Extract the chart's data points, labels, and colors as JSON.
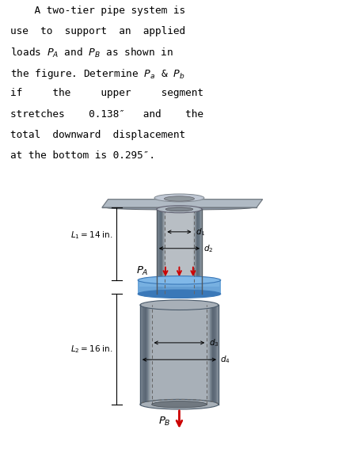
{
  "fig_bg": "#ffffff",
  "box_bg": "#d6e8f5",
  "upper_pipe_color": "#b8bec4",
  "upper_pipe_dark": "#8898a8",
  "lower_pipe_color": "#a8b0b8",
  "lower_pipe_dark": "#7888a0",
  "plate_color": "#b0bac4",
  "plate_dark": "#909aa8",
  "collar_color": "#5b9bd5",
  "collar_light": "#80b8e8",
  "collar_dark": "#3a78b8",
  "arrow_color": "#cc0000",
  "text_color": "#000000",
  "dashed_color": "#666666",
  "dim_color": "#000000",
  "L1_label": "$L_1 = 14$ in.",
  "L2_label": "$L_2 = 16$ in.",
  "PA_label": "$P_A$",
  "PB_label": "$P_B$",
  "text_lines": [
    "    A two-tier pipe system is",
    "use  to  support  an  applied",
    "loads $P_A$ and $P_B$ as shown in",
    "the figure. Determine $P_a$ & $P_b$",
    "if     the     upper     segment",
    "stretches    0.138″   and    the",
    "total  downward  displacement",
    "at the bottom is 0.295″."
  ]
}
